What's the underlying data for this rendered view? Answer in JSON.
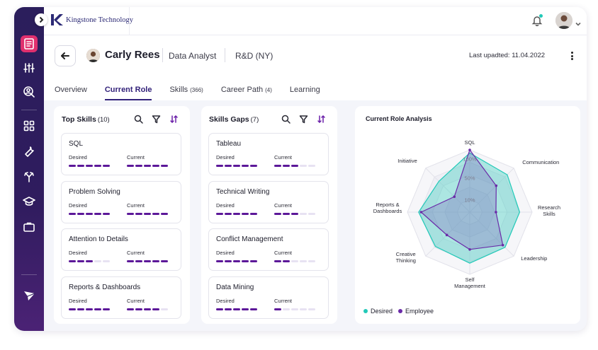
{
  "brand": {
    "name": "Kingstone Technology",
    "accent": "#2c2a75"
  },
  "sidebar": {
    "items": [
      {
        "icon": "dashboard-icon",
        "active": true
      },
      {
        "icon": "sliders-icon"
      },
      {
        "icon": "user-search-icon"
      },
      {
        "icon": "grid-icon"
      },
      {
        "icon": "wrench-icon"
      },
      {
        "icon": "split-arrows-icon"
      },
      {
        "icon": "graduation-cap-icon"
      },
      {
        "icon": "briefcase-icon"
      }
    ],
    "footer_icon": "paper-plane-logo-icon"
  },
  "header": {
    "employee_name": "Carly Rees",
    "title": "Data Analyst",
    "department": "R&D (NY)",
    "last_updated": "Last upadted: 11.04.2022"
  },
  "tabs": [
    {
      "label": "Overview",
      "count": ""
    },
    {
      "label": "Current Role",
      "count": "",
      "active": true
    },
    {
      "label": "Skills",
      "count": "(366)"
    },
    {
      "label": "Career Path",
      "count": "(4)"
    },
    {
      "label": "Learning",
      "count": ""
    }
  ],
  "top_skills": {
    "title": "Top Skills",
    "count": "(10)",
    "desired_label": "Desired",
    "current_label": "Current",
    "items": [
      {
        "name": "SQL",
        "desired": 5,
        "current": 5
      },
      {
        "name": "Problem Solving",
        "desired": 5,
        "current": 5
      },
      {
        "name": "Attention to Details",
        "desired": 3,
        "current": 5
      },
      {
        "name": "Reports & Dashboards",
        "desired": 5,
        "current": 4
      }
    ]
  },
  "skills_gaps": {
    "title": "Skills Gaps",
    "count": "(7)",
    "desired_label": "Desired",
    "current_label": "Current",
    "items": [
      {
        "name": "Tableau",
        "desired": 5,
        "current": 3
      },
      {
        "name": "Technical Writing",
        "desired": 5,
        "current": 3
      },
      {
        "name": "Conflict Management",
        "desired": 5,
        "current": 2
      },
      {
        "name": "Data Mining",
        "desired": 5,
        "current": 1
      }
    ]
  },
  "max_level": 5,
  "colors": {
    "primary": "#5c1899",
    "desired": "#22c9b8",
    "employee": "#6a2aa8",
    "active_nav": "#e0306e"
  },
  "chart_data": {
    "type": "radar",
    "title": "Current Role Analysis",
    "axes": [
      "SQL",
      "Communication",
      "Research Skills",
      "Leadership",
      "Self Management",
      "Creative Thinking",
      "Reports & Dashboards",
      "Initiative"
    ],
    "ring_labels": [
      "100%",
      "50%",
      "10%"
    ],
    "series": [
      {
        "name": "Desired",
        "values": [
          95,
          85,
          80,
          80,
          82,
          78,
          82,
          70
        ]
      },
      {
        "name": "Employee",
        "values": [
          100,
          60,
          42,
          75,
          60,
          52,
          78,
          35
        ]
      }
    ],
    "legend_position": "bottom-left"
  }
}
